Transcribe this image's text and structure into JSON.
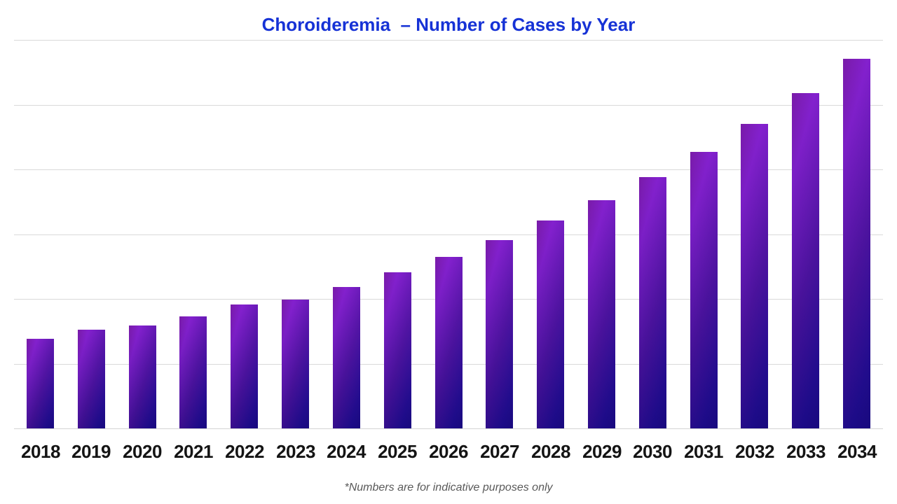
{
  "title": {
    "text": "Choroideremia  – Number of Cases by Year",
    "color": "#1632d6"
  },
  "footnote": {
    "text": "*Numbers are for indicative purposes only",
    "color": "#595959"
  },
  "chart_data": {
    "type": "bar",
    "title": "Choroideremia  – Number of Cases by Year",
    "xlabel": "",
    "ylabel": "",
    "categories": [
      "2018",
      "2019",
      "2020",
      "2021",
      "2022",
      "2023",
      "2024",
      "2025",
      "2026",
      "2027",
      "2028",
      "2029",
      "2030",
      "2031",
      "2032",
      "2033",
      "2034"
    ],
    "values_pct_of_tallest": [
      24.2,
      26.7,
      27.8,
      30.3,
      33.5,
      34.8,
      38.3,
      42.2,
      46.4,
      50.9,
      56.3,
      61.7,
      68.0,
      74.8,
      82.4,
      90.7,
      100.0
    ],
    "y_axis": {
      "tick_labels_visible": false,
      "gridline_rows": 6,
      "gridline_color": "#d9d9d9"
    },
    "legend": "none",
    "bar_gradient": [
      "#7d1ec9",
      "#49119e",
      "#1a0a89"
    ],
    "x_tick_label_color": "#141414"
  }
}
